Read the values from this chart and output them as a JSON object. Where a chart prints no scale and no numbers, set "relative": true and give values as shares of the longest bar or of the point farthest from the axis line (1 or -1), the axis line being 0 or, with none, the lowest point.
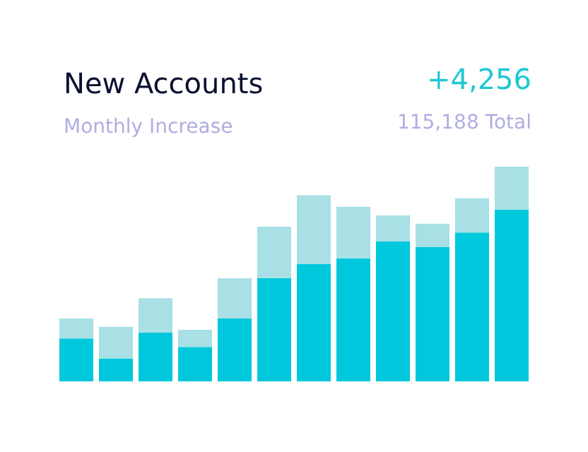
{
  "chart_data": {
    "type": "bar",
    "title": "New Accounts",
    "subtitle": "Monthly Increase",
    "annotations": [
      "+4,256",
      "115,188 Total"
    ],
    "stacked": true,
    "relative": true,
    "categories": [
      null,
      null,
      null,
      null,
      null,
      null,
      null,
      null,
      null,
      null,
      null,
      null
    ],
    "series": [
      {
        "color": "#00c8dc",
        "values": [
          0.2,
          0.107,
          0.227,
          0.16,
          0.293,
          0.48,
          0.547,
          0.573,
          0.653,
          0.627,
          0.693,
          0.8
        ]
      },
      {
        "color": "#a8e0e6",
        "values": [
          0.093,
          0.147,
          0.16,
          0.08,
          0.187,
          0.24,
          0.32,
          0.24,
          0.12,
          0.107,
          0.16,
          0.2
        ]
      }
    ]
  }
}
